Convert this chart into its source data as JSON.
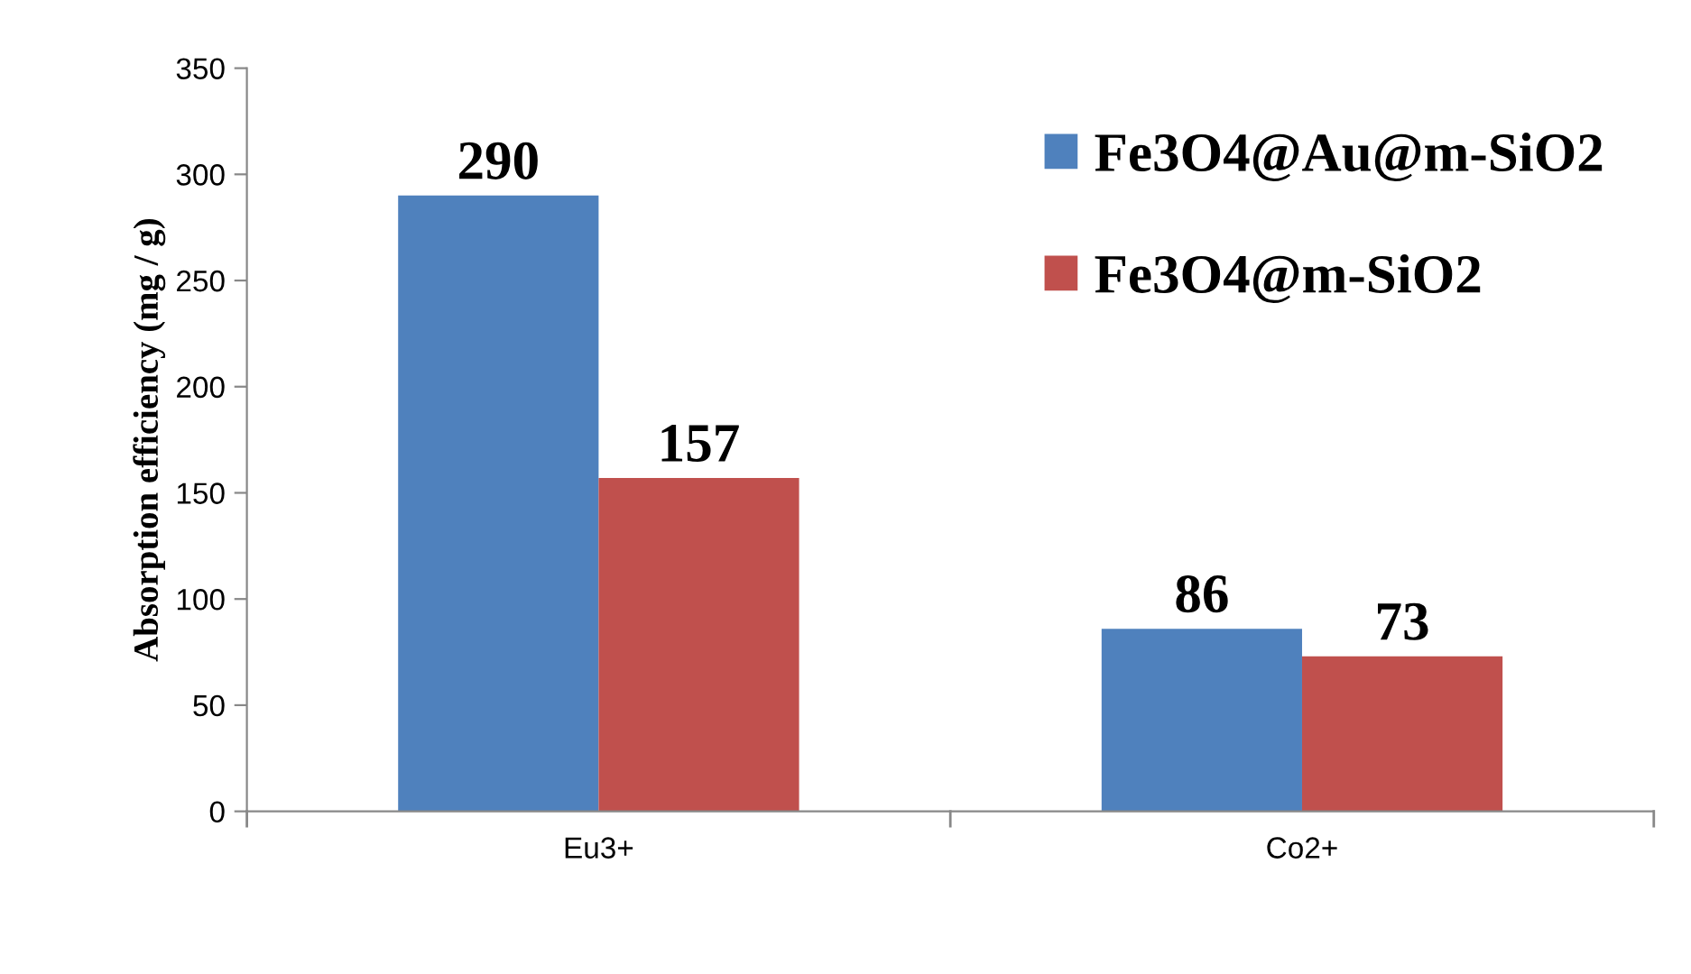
{
  "chart_data": {
    "type": "bar",
    "ylabel": "Absorption efficiency (mg / g)",
    "categories": [
      "Eu3+",
      "Co2+"
    ],
    "series": [
      {
        "name": "Fe3O4@Au@m-SiO2",
        "color": "#4f81bd",
        "values": [
          290,
          86
        ]
      },
      {
        "name": "Fe3O4@m-SiO2",
        "color": "#c0504d",
        "values": [
          157,
          73
        ]
      }
    ],
    "ylim": [
      0,
      350
    ],
    "yticks": [
      0,
      50,
      100,
      150,
      200,
      250,
      300,
      350
    ],
    "data_labels": true,
    "legend": "top right",
    "grid": false
  }
}
